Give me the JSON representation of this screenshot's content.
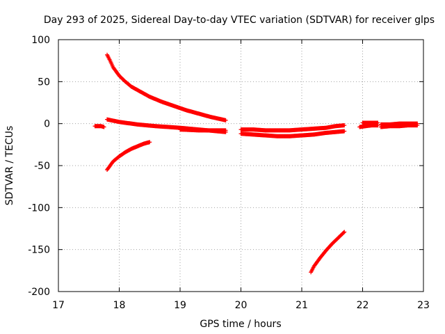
{
  "chart_data": {
    "type": "scatter",
    "title": "Day 293 of 2025, Sidereal Day-to-day VTEC variation (SDTVAR) for receiver glps",
    "xlabel": "GPS time / hours",
    "ylabel": "SDTVAR / TECUs",
    "xlim": [
      17,
      23
    ],
    "ylim": [
      -200,
      100
    ],
    "x_ticks": [
      17,
      18,
      19,
      20,
      21,
      22,
      23
    ],
    "y_ticks": [
      -200,
      -150,
      -100,
      -50,
      0,
      50,
      100
    ],
    "grid": true,
    "marker": "+",
    "color": "#ff0000",
    "series": [
      {
        "x": [
          17.6,
          17.65,
          17.7,
          17.75
        ],
        "y": [
          -3,
          -3,
          -3,
          -4
        ]
      },
      {
        "x": [
          17.8,
          17.85,
          17.9,
          18.0,
          18.1,
          18.2,
          18.35,
          18.5,
          18.7,
          18.9,
          19.1,
          19.3,
          19.5,
          19.75
        ],
        "y": [
          82,
          75,
          67,
          57,
          50,
          44,
          38,
          32,
          26,
          21,
          16,
          12,
          8,
          4
        ]
      },
      {
        "x": [
          17.8,
          18.0,
          18.3,
          18.6,
          19.0,
          19.3,
          19.6,
          19.75
        ],
        "y": [
          5,
          2,
          -1,
          -3,
          -5,
          -7,
          -9,
          -10
        ]
      },
      {
        "x": [
          19.0,
          19.3,
          19.5,
          19.75
        ],
        "y": [
          -7,
          -8,
          -8,
          -8
        ]
      },
      {
        "x": [
          17.8,
          17.85,
          17.9,
          18.0,
          18.1,
          18.2,
          18.3,
          18.4,
          18.5
        ],
        "y": [
          -55,
          -50,
          -45,
          -39,
          -34,
          -30,
          -27,
          -24,
          -22
        ]
      },
      {
        "x": [
          20.0,
          20.2,
          20.4,
          20.6,
          20.8,
          21.0,
          21.2,
          21.4,
          21.55,
          21.7
        ],
        "y": [
          -12,
          -13,
          -14,
          -15,
          -15,
          -14,
          -13,
          -11,
          -10,
          -9
        ]
      },
      {
        "x": [
          20.0,
          20.2,
          20.4,
          20.6,
          20.8,
          21.0,
          21.2,
          21.4,
          21.55,
          21.7
        ],
        "y": [
          -7,
          -7,
          -8,
          -8,
          -8,
          -7,
          -6,
          -5,
          -3,
          -2
        ]
      },
      {
        "x": [
          21.15,
          21.2,
          21.3,
          21.4,
          21.5,
          21.6,
          21.7
        ],
        "y": [
          -177,
          -170,
          -160,
          -151,
          -143,
          -136,
          -129
        ]
      },
      {
        "x": [
          21.95,
          22.05,
          22.15,
          22.25
        ],
        "y": [
          -4,
          -3,
          -2,
          -2
        ]
      },
      {
        "x": [
          22.0,
          22.1,
          22.2,
          22.25
        ],
        "y": [
          1,
          1,
          1,
          1
        ]
      },
      {
        "x": [
          22.3,
          22.45,
          22.6,
          22.75,
          22.9
        ],
        "y": [
          -4,
          -3,
          -3,
          -2,
          -2
        ]
      },
      {
        "x": [
          22.3,
          22.45,
          22.6,
          22.75,
          22.9
        ],
        "y": [
          -1,
          -1,
          0,
          0,
          0
        ]
      }
    ]
  }
}
